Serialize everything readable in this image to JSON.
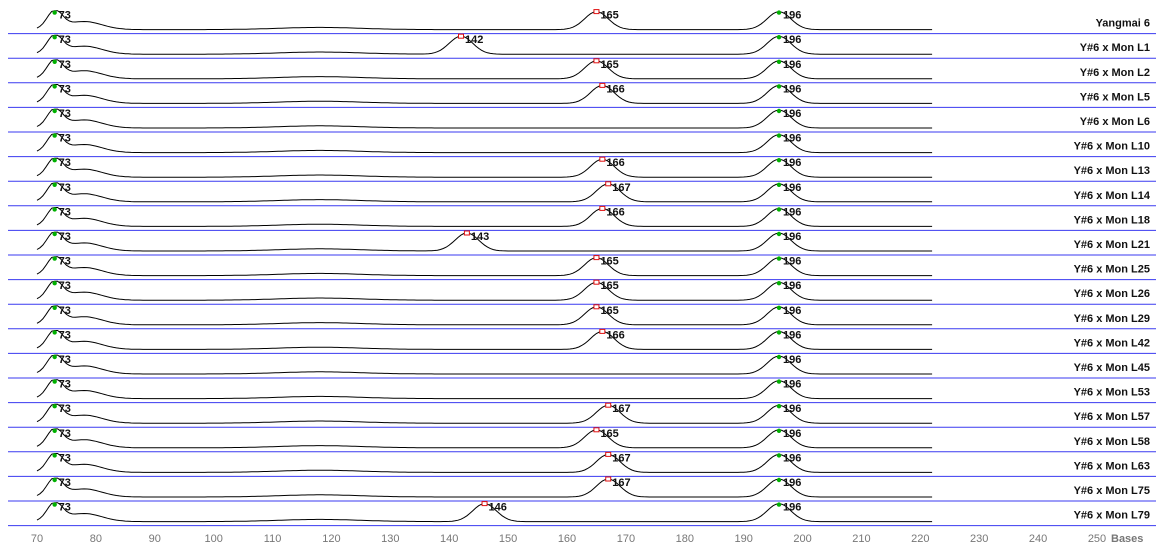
{
  "chart_data": {
    "type": "line",
    "title": "",
    "xlabel": "Bases",
    "ylabel": "",
    "xlim": [
      68,
      250
    ],
    "xticks": [
      70,
      80,
      90,
      100,
      110,
      120,
      130,
      140,
      150,
      160,
      170,
      180,
      190,
      200,
      210,
      220,
      230,
      240,
      250
    ],
    "xtick_labels": [
      "70",
      "80",
      "90",
      "100",
      "110",
      "120",
      "130",
      "140",
      "150",
      "160",
      "170",
      "180",
      "190",
      "200",
      "210",
      "220",
      "230",
      "240",
      "250"
    ],
    "grid": false,
    "legend": "none",
    "colors": {
      "trace": "#000000",
      "lane_line": "#3a3af0",
      "peak_green": "#00b000",
      "peak_red": "#e01010",
      "tick_text": "#777777"
    },
    "series": [
      {
        "name": "Yangmai 6",
        "peaks": [
          {
            "label": "73",
            "x": 73,
            "marker": "green"
          },
          {
            "label": "165",
            "x": 165,
            "marker": "red"
          },
          {
            "label": "196",
            "x": 196,
            "marker": "green"
          }
        ]
      },
      {
        "name": "Y#6 x Mon L1",
        "peaks": [
          {
            "label": "73",
            "x": 73,
            "marker": "green"
          },
          {
            "label": "142",
            "x": 142,
            "marker": "red"
          },
          {
            "label": "196",
            "x": 196,
            "marker": "green"
          }
        ]
      },
      {
        "name": "Y#6 x Mon L2",
        "peaks": [
          {
            "label": "73",
            "x": 73,
            "marker": "green"
          },
          {
            "label": "165",
            "x": 165,
            "marker": "red"
          },
          {
            "label": "196",
            "x": 196,
            "marker": "green"
          }
        ]
      },
      {
        "name": "Y#6 x Mon L5",
        "peaks": [
          {
            "label": "73",
            "x": 73,
            "marker": "green"
          },
          {
            "label": "166",
            "x": 166,
            "marker": "red"
          },
          {
            "label": "196",
            "x": 196,
            "marker": "green"
          }
        ]
      },
      {
        "name": "Y#6 x Mon L6",
        "peaks": [
          {
            "label": "73",
            "x": 73,
            "marker": "green"
          },
          {
            "label": "196",
            "x": 196,
            "marker": "green"
          }
        ]
      },
      {
        "name": "Y#6 x Mon L10",
        "peaks": [
          {
            "label": "73",
            "x": 73,
            "marker": "green"
          },
          {
            "label": "196",
            "x": 196,
            "marker": "green"
          }
        ]
      },
      {
        "name": "Y#6 x Mon L13",
        "peaks": [
          {
            "label": "73",
            "x": 73,
            "marker": "green"
          },
          {
            "label": "166",
            "x": 166,
            "marker": "red"
          },
          {
            "label": "196",
            "x": 196,
            "marker": "green"
          }
        ]
      },
      {
        "name": "Y#6 x Mon L14",
        "peaks": [
          {
            "label": "73",
            "x": 73,
            "marker": "green"
          },
          {
            "label": "167",
            "x": 167,
            "marker": "red"
          },
          {
            "label": "196",
            "x": 196,
            "marker": "green"
          }
        ]
      },
      {
        "name": "Y#6 x Mon L18",
        "peaks": [
          {
            "label": "73",
            "x": 73,
            "marker": "green"
          },
          {
            "label": "166",
            "x": 166,
            "marker": "red"
          },
          {
            "label": "196",
            "x": 196,
            "marker": "green"
          }
        ]
      },
      {
        "name": "Y#6 x Mon L21",
        "peaks": [
          {
            "label": "73",
            "x": 73,
            "marker": "green"
          },
          {
            "label": "143",
            "x": 143,
            "marker": "red"
          },
          {
            "label": "196",
            "x": 196,
            "marker": "green"
          }
        ]
      },
      {
        "name": "Y#6 x Mon L25",
        "peaks": [
          {
            "label": "73",
            "x": 73,
            "marker": "green"
          },
          {
            "label": "165",
            "x": 165,
            "marker": "red"
          },
          {
            "label": "196",
            "x": 196,
            "marker": "green"
          }
        ]
      },
      {
        "name": "Y#6 x Mon L26",
        "peaks": [
          {
            "label": "73",
            "x": 73,
            "marker": "green"
          },
          {
            "label": "165",
            "x": 165,
            "marker": "red"
          },
          {
            "label": "196",
            "x": 196,
            "marker": "green"
          }
        ]
      },
      {
        "name": "Y#6 x Mon L29",
        "peaks": [
          {
            "label": "73",
            "x": 73,
            "marker": "green"
          },
          {
            "label": "165",
            "x": 165,
            "marker": "red"
          },
          {
            "label": "196",
            "x": 196,
            "marker": "green"
          }
        ]
      },
      {
        "name": "Y#6 x Mon L42",
        "peaks": [
          {
            "label": "73",
            "x": 73,
            "marker": "green"
          },
          {
            "label": "166",
            "x": 166,
            "marker": "red"
          },
          {
            "label": "196",
            "x": 196,
            "marker": "green"
          }
        ]
      },
      {
        "name": "Y#6 x Mon L45",
        "peaks": [
          {
            "label": "73",
            "x": 73,
            "marker": "green"
          },
          {
            "label": "196",
            "x": 196,
            "marker": "green"
          }
        ]
      },
      {
        "name": "Y#6 x Mon L53",
        "peaks": [
          {
            "label": "73",
            "x": 73,
            "marker": "green"
          },
          {
            "label": "196",
            "x": 196,
            "marker": "green"
          }
        ]
      },
      {
        "name": "Y#6 x Mon L57",
        "peaks": [
          {
            "label": "73",
            "x": 73,
            "marker": "green"
          },
          {
            "label": "167",
            "x": 167,
            "marker": "red"
          },
          {
            "label": "196",
            "x": 196,
            "marker": "green"
          }
        ]
      },
      {
        "name": "Y#6 x Mon L58",
        "peaks": [
          {
            "label": "73",
            "x": 73,
            "marker": "green"
          },
          {
            "label": "165",
            "x": 165,
            "marker": "red"
          },
          {
            "label": "196",
            "x": 196,
            "marker": "green"
          }
        ]
      },
      {
        "name": "Y#6 x Mon L63",
        "peaks": [
          {
            "label": "73",
            "x": 73,
            "marker": "green"
          },
          {
            "label": "167",
            "x": 167,
            "marker": "red"
          },
          {
            "label": "196",
            "x": 196,
            "marker": "green"
          }
        ]
      },
      {
        "name": "Y#6 x Mon L75",
        "peaks": [
          {
            "label": "73",
            "x": 73,
            "marker": "green"
          },
          {
            "label": "167",
            "x": 167,
            "marker": "red"
          },
          {
            "label": "196",
            "x": 196,
            "marker": "green"
          }
        ]
      },
      {
        "name": "Y#6 x Mon L79",
        "peaks": [
          {
            "label": "73",
            "x": 73,
            "marker": "green"
          },
          {
            "label": "146",
            "x": 146,
            "marker": "red"
          },
          {
            "label": "196",
            "x": 196,
            "marker": "green"
          }
        ]
      }
    ]
  }
}
